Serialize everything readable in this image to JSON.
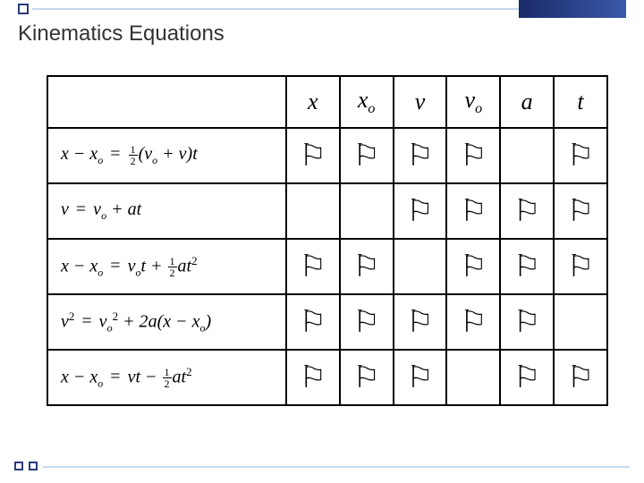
{
  "title": "Kinematics Equations",
  "flag_glyph": "⚐",
  "colors": {
    "accent_dark": "#2a3a7a",
    "accent_light": "#c5d9f1",
    "gradient_start": "#1a2a6a",
    "gradient_end": "#3a5aa8",
    "text": "#333333",
    "border": "#000000"
  },
  "headers": {
    "x": "x",
    "xo_main": "x",
    "xo_sub": "o",
    "v": "v",
    "vo_main": "v",
    "vo_sub": "o",
    "a": "a",
    "t": "t"
  },
  "rows": [
    {
      "equation_html": "<i>x</i> − <i>x</i><span class='esub'>o</span> <span class='eq'>=</span> <span class='frac'><span class='num'>1</span><span class='den'>2</span></span>(<i>v</i><span class='esub'>o</span> + <i>v</i>)<i>t</i>",
      "flags": {
        "x": true,
        "xo": true,
        "v": true,
        "vo": true,
        "a": false,
        "t": true
      }
    },
    {
      "equation_html": "<i>v</i> <span class='eq'>=</span> <i>v</i><span class='esub'>o</span> + <i>a</i><i>t</i>",
      "flags": {
        "x": false,
        "xo": false,
        "v": true,
        "vo": true,
        "a": true,
        "t": true
      }
    },
    {
      "equation_html": "<i>x</i> − <i>x</i><span class='esub'>o</span> <span class='eq'>=</span> <i>v</i><span class='esub'>o</span><i>t</i> + <span class='frac'><span class='num'>1</span><span class='den'>2</span></span><i>a</i><i>t</i><span class='sup'>2</span>",
      "flags": {
        "x": true,
        "xo": true,
        "v": false,
        "vo": true,
        "a": true,
        "t": true
      }
    },
    {
      "equation_html": "<i>v</i><span class='sup'>2</span> <span class='eq'>=</span> <i>v</i><span class='esub'>o</span><span class='sup'>2</span> + 2<i>a</i>(<i>x</i> − <i>x</i><span class='esub'>o</span>)",
      "flags": {
        "x": true,
        "xo": true,
        "v": true,
        "vo": true,
        "a": true,
        "t": false
      }
    },
    {
      "equation_html": "<i>x</i> − <i>x</i><span class='esub'>o</span> <span class='eq'>=</span> <i>v</i><i>t</i> − <span class='frac'><span class='num'>1</span><span class='den'>2</span></span><i>a</i><i>t</i><span class='sup'>2</span>",
      "flags": {
        "x": true,
        "xo": true,
        "v": true,
        "vo": false,
        "a": true,
        "t": true
      }
    }
  ]
}
